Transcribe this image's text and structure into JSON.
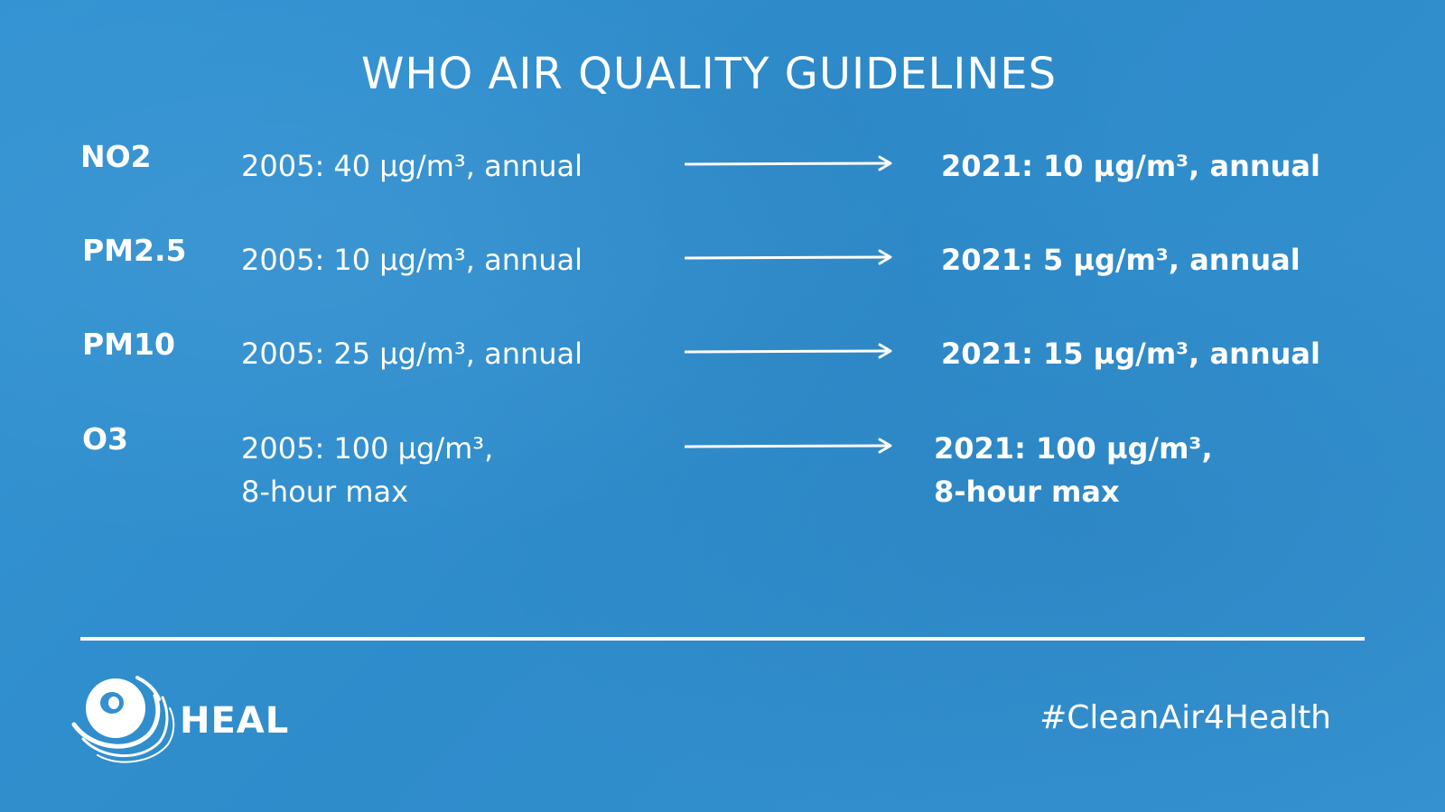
{
  "title": "WHO AIR QUALITY GUIDELINES",
  "rows": [
    {
      "pollutant": "NO2",
      "old_line1": "2005:  40 µg/m³, annual",
      "old_line2": "",
      "new_line1": "2021:  10  µg/m³, annual",
      "new_line2": ""
    },
    {
      "pollutant": "PM2.5",
      "old_line1": "2005:  10  µg/m³, annual",
      "old_line2": "",
      "new_line1": "2021:  5  µg/m³, annual",
      "new_line2": ""
    },
    {
      "pollutant": "PM10",
      "old_line1": "2005:  25  µg/m³, annual",
      "old_line2": "",
      "new_line1": "2021:  15  µg/m³, annual",
      "new_line2": ""
    },
    {
      "pollutant": "O3",
      "old_line1": "2005:  100  µg/m³,",
      "old_line2": "8-hour max",
      "new_line1": "2021: 100  µg/m³,",
      "new_line2": "8-hour max"
    }
  ],
  "footer": {
    "brand": "HEAL",
    "hashtag": "#CleanAir4Health"
  },
  "colors": {
    "background": "#3490cf",
    "text": "#ffffff"
  },
  "icons": {
    "arrow": "arrow-right-icon",
    "logo": "heal-logo-icon"
  }
}
